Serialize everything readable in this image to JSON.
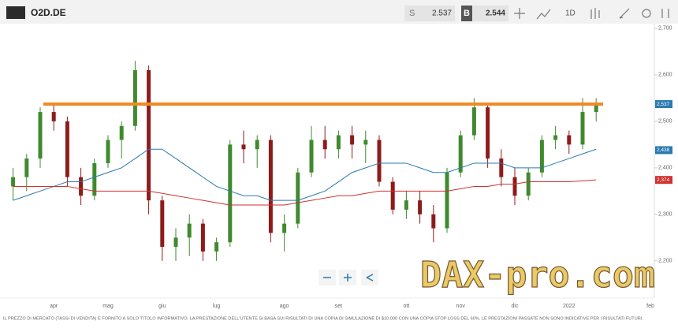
{
  "header": {
    "symbol": "O2D.DE",
    "sell_label": "S",
    "sell_price": "2.537",
    "buy_label": "B",
    "buy_price": "2.544",
    "interval": "1D"
  },
  "chart_data": {
    "type": "candlestick",
    "categories": [
      null,
      null,
      null,
      "apr",
      null,
      null,
      null,
      "mag",
      null,
      null,
      null,
      "giu",
      null,
      null,
      null,
      "lug",
      null,
      null,
      null,
      null,
      "ago",
      null,
      null,
      null,
      "set",
      null,
      null,
      null,
      null,
      "ott",
      null,
      null,
      null,
      "nov",
      null,
      null,
      null,
      "dic",
      null,
      null,
      null,
      "2022",
      null,
      null,
      null,
      null,
      null,
      "feb"
    ],
    "open": [
      2.36,
      2.38,
      2.42,
      2.52,
      2.5,
      2.38,
      2.34,
      2.41,
      2.46,
      2.49,
      2.61,
      2.33,
      2.23,
      2.25,
      2.28,
      2.22,
      2.24,
      2.45,
      2.44,
      2.46,
      2.26,
      2.28,
      2.39,
      2.46,
      2.44,
      2.47,
      2.45,
      2.46,
      2.37,
      2.31,
      2.33,
      2.3,
      2.27,
      2.39,
      2.47,
      2.53,
      2.42,
      2.38,
      2.34,
      2.39,
      2.46,
      2.47,
      2.45,
      2.52,
      null,
      null,
      null,
      null
    ],
    "high": [
      2.4,
      2.43,
      2.53,
      2.54,
      2.51,
      2.4,
      2.42,
      2.47,
      2.5,
      2.63,
      2.62,
      2.34,
      2.27,
      2.3,
      2.29,
      2.25,
      2.46,
      2.48,
      2.47,
      2.47,
      2.3,
      2.4,
      2.49,
      2.49,
      2.48,
      2.49,
      2.48,
      2.47,
      2.38,
      2.35,
      2.35,
      2.32,
      2.4,
      2.48,
      2.55,
      2.54,
      2.44,
      2.4,
      2.4,
      2.47,
      2.49,
      2.48,
      2.55,
      2.55,
      null,
      null,
      null,
      null
    ],
    "low": [
      2.33,
      2.35,
      2.4,
      2.48,
      2.36,
      2.32,
      2.33,
      2.4,
      2.42,
      2.48,
      2.3,
      2.2,
      2.2,
      2.21,
      2.2,
      2.2,
      2.23,
      2.41,
      2.4,
      2.24,
      2.22,
      2.27,
      2.38,
      2.42,
      2.42,
      2.42,
      2.41,
      2.36,
      2.3,
      2.29,
      2.28,
      2.24,
      2.26,
      2.38,
      2.46,
      2.4,
      2.36,
      2.32,
      2.33,
      2.38,
      2.44,
      2.43,
      2.44,
      2.5,
      null,
      null,
      null,
      null
    ],
    "close": [
      2.38,
      2.42,
      2.52,
      2.5,
      2.38,
      2.34,
      2.41,
      2.46,
      2.49,
      2.61,
      2.33,
      2.23,
      2.25,
      2.28,
      2.22,
      2.24,
      2.45,
      2.44,
      2.46,
      2.26,
      2.28,
      2.39,
      2.46,
      2.44,
      2.47,
      2.45,
      2.46,
      2.37,
      2.31,
      2.33,
      2.3,
      2.27,
      2.39,
      2.47,
      2.53,
      2.42,
      2.38,
      2.34,
      2.39,
      2.46,
      2.47,
      2.45,
      2.52,
      2.54,
      null,
      null,
      null,
      null
    ],
    "up_color": "#3f8a2e",
    "down_color": "#8e1b1b",
    "series": [
      {
        "color": "#2a7ab0",
        "values": [
          2.33,
          2.34,
          2.35,
          2.36,
          2.37,
          2.37,
          2.38,
          2.39,
          2.4,
          2.42,
          2.44,
          2.44,
          2.42,
          2.4,
          2.38,
          2.36,
          2.35,
          2.34,
          2.34,
          2.33,
          2.33,
          2.33,
          2.34,
          2.35,
          2.37,
          2.39,
          2.4,
          2.41,
          2.41,
          2.41,
          2.4,
          2.39,
          2.39,
          2.4,
          2.41,
          2.41,
          2.41,
          2.4,
          2.4,
          2.4,
          2.41,
          2.42,
          2.43,
          2.44,
          null,
          null,
          null,
          null
        ]
      },
      {
        "color": "#d03030",
        "values": [
          2.36,
          2.36,
          2.36,
          2.36,
          2.36,
          2.355,
          2.35,
          2.35,
          2.35,
          2.35,
          2.35,
          2.345,
          2.34,
          2.335,
          2.33,
          2.325,
          2.32,
          2.32,
          2.32,
          2.32,
          2.32,
          2.325,
          2.33,
          2.335,
          2.34,
          2.34,
          2.345,
          2.35,
          2.35,
          2.35,
          2.35,
          2.35,
          2.35,
          2.355,
          2.36,
          2.36,
          2.365,
          2.365,
          2.37,
          2.37,
          2.37,
          2.37,
          2.372,
          2.374,
          null,
          null,
          null,
          null
        ]
      }
    ],
    "hline": {
      "value": 2.537,
      "color": "#f08a24"
    },
    "axis_tags": [
      {
        "value": 2.537,
        "label": "2,537",
        "color": "#2a7ab0"
      },
      {
        "value": 2.438,
        "label": "2,438",
        "color": "#2a7ab0"
      },
      {
        "value": 2.374,
        "label": "2,374",
        "color": "#d03030"
      }
    ],
    "ylim": [
      2.12,
      2.71
    ],
    "yticks": [
      {
        "value": 2.2,
        "label": "2,200"
      },
      {
        "value": 2.3,
        "label": "2,300"
      },
      {
        "value": 2.4,
        "label": "2,400"
      },
      {
        "value": 2.5,
        "label": "2,500"
      },
      {
        "value": 2.6,
        "label": "2,600"
      },
      {
        "value": 2.7,
        "label": "2,700"
      }
    ],
    "grid": false
  },
  "watermark": "DAX-pro.com",
  "disclaimer": "IL PREZZO DI MERCATO (TASSI DI VENDITA) È FORNITO A SOLO TITOLO INFORMATIVO. LA PRESTAZIONE DELL'UTENTE SI BASA SUI RISULTATI DI UNA COPIA DI SIMULAZIONE DI $10.000 CON UNA COPIA STOP LOSS DEL 60%. LE PRESTAZIONI PASSATE NON SONO INDICATIVE PER I RISULTATI FUTURI."
}
